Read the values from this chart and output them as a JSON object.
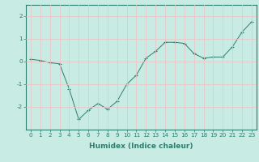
{
  "x": [
    0,
    1,
    2,
    3,
    4,
    5,
    6,
    7,
    8,
    9,
    10,
    11,
    12,
    13,
    14,
    15,
    16,
    17,
    18,
    19,
    20,
    21,
    22,
    23
  ],
  "y": [
    0.1,
    0.05,
    -0.05,
    -0.1,
    -1.2,
    -2.55,
    -2.15,
    -1.85,
    -2.1,
    -1.75,
    -1.0,
    -0.6,
    0.15,
    0.45,
    0.85,
    0.85,
    0.8,
    0.35,
    0.15,
    0.2,
    0.2,
    0.65,
    1.3,
    1.75
  ],
  "line_color": "#2e7d6e",
  "marker": "+",
  "marker_size": 3,
  "bg_color": "#c8ece4",
  "grid_color": "#e8c8c8",
  "xlabel": "Humidex (Indice chaleur)",
  "xlim": [
    -0.5,
    23.5
  ],
  "ylim": [
    -3.0,
    2.5
  ],
  "yticks": [
    -2,
    -1,
    0,
    1,
    2
  ],
  "xticks": [
    0,
    1,
    2,
    3,
    4,
    5,
    6,
    7,
    8,
    9,
    10,
    11,
    12,
    13,
    14,
    15,
    16,
    17,
    18,
    19,
    20,
    21,
    22,
    23
  ],
  "tick_label_fontsize": 5.2,
  "xlabel_fontsize": 6.5,
  "spine_color": "#2e7d6e",
  "tick_color": "#2e7d6e",
  "label_color": "#2e7d6e"
}
